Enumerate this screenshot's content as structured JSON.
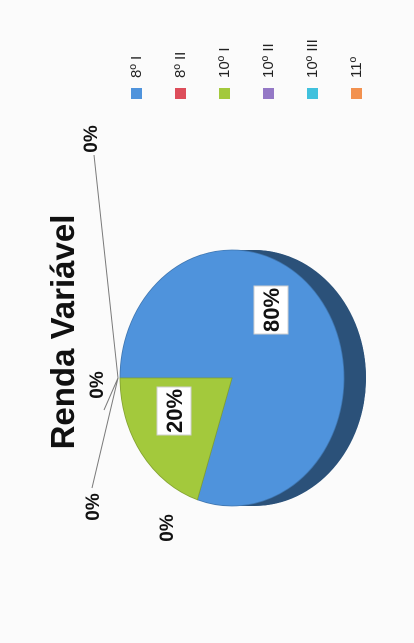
{
  "chart_data": {
    "type": "pie",
    "title": "Renda Variável",
    "categories": [
      "8º I",
      "8º II",
      "10º I",
      "10º II",
      "10º III",
      "11º"
    ],
    "values": [
      80,
      0,
      20,
      0,
      0,
      0
    ],
    "data_labels": [
      "80%",
      "0%",
      "20%",
      "0%",
      "0%",
      "0%"
    ],
    "colors": [
      "#4f93dc",
      "#dd4d5a",
      "#a3c93c",
      "#9478c6",
      "#40c1dd",
      "#f2914f"
    ],
    "legend_position": "right",
    "style": "3d",
    "orientation": "rotated 90° counter-clockwise"
  }
}
